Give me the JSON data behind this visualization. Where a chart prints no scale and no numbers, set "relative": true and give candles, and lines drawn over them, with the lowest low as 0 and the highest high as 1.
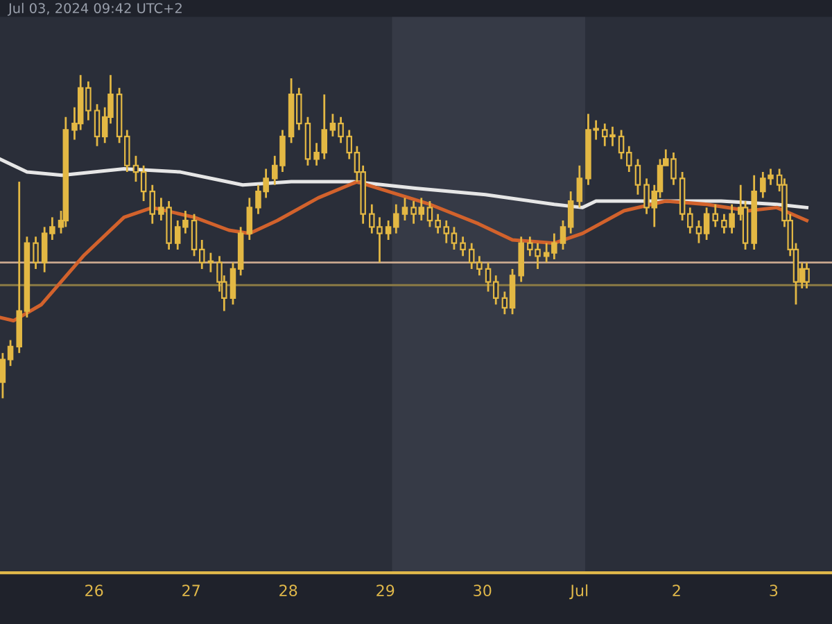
{
  "chart_data": {
    "type": "candlestick",
    "relative": true,
    "annotations": [
      "Jul 03, 2024 09:42 UTC+2"
    ],
    "color": "#e3b844",
    "x": [
      "2024-06-25T01:25",
      "2024-06-25T03:20",
      "2024-06-25T05:30",
      "2024-06-25T07:25",
      "2024-06-25T09:35",
      "2024-06-25T11:45",
      "2024-06-25T13:40",
      "2024-06-25T15:50",
      "2024-06-25T17:00",
      "2024-06-25T19:10",
      "2024-06-25T20:40",
      "2024-06-25T22:35",
      "2024-06-26T00:45",
      "2024-06-26T02:40",
      "2024-06-26T04:05",
      "2024-06-26T06:15",
      "2024-06-26T08:10",
      "2024-06-26T10:20",
      "2024-06-26T12:15",
      "2024-06-26T14:25",
      "2024-06-26T16:35",
      "2024-06-26T18:30",
      "2024-06-26T20:40",
      "2024-06-26T22:35",
      "2024-06-27T00:45",
      "2024-06-27T02:40",
      "2024-06-27T04:50",
      "2024-06-27T07:00",
      "2024-06-27T08:10",
      "2024-06-27T10:20",
      "2024-06-27T12:15",
      "2024-06-27T14:25",
      "2024-06-27T16:35",
      "2024-06-27T18:30",
      "2024-06-27T20:40",
      "2024-06-27T22:35",
      "2024-06-28T00:45",
      "2024-06-28T02:40",
      "2024-06-28T04:50",
      "2024-06-28T07:00",
      "2024-06-28T08:55",
      "2024-06-28T11:00",
      "2024-06-28T13:00",
      "2024-06-28T15:05",
      "2024-06-28T17:00",
      "2024-06-28T18:30",
      "2024-06-28T20:40",
      "2024-06-28T22:35",
      "2024-06-29T00:45",
      "2024-06-29T02:40",
      "2024-06-29T04:50",
      "2024-06-29T07:00",
      "2024-06-29T08:55",
      "2024-06-29T11:00",
      "2024-06-29T13:00",
      "2024-06-29T15:05",
      "2024-06-29T17:00",
      "2024-06-29T19:10",
      "2024-06-29T21:20",
      "2024-06-29T23:15",
      "2024-06-30T01:25",
      "2024-06-30T03:20",
      "2024-06-30T05:30",
      "2024-06-30T07:25",
      "2024-06-30T09:35",
      "2024-06-30T11:45",
      "2024-06-30T13:40",
      "2024-06-30T15:50",
      "2024-06-30T17:45",
      "2024-06-30T19:55",
      "2024-06-30T21:50",
      "2024-07-01T00:00",
      "2024-07-01T02:10",
      "2024-07-01T04:05",
      "2024-07-01T06:15",
      "2024-07-01T08:10",
      "2024-07-01T10:20",
      "2024-07-01T12:15",
      "2024-07-01T14:25",
      "2024-07-01T16:35",
      "2024-07-01T18:30",
      "2024-07-01T19:55",
      "2024-07-01T21:20",
      "2024-07-01T23:15",
      "2024-07-02T01:25",
      "2024-07-02T03:20",
      "2024-07-02T05:30",
      "2024-07-02T07:25",
      "2024-07-02T09:35",
      "2024-07-02T11:45",
      "2024-07-02T13:40",
      "2024-07-02T15:50",
      "2024-07-02T17:00",
      "2024-07-02T19:10",
      "2024-07-02T21:20",
      "2024-07-02T23:15",
      "2024-07-03T01:25",
      "2024-07-03T02:40",
      "2024-07-03T04:05",
      "2024-07-03T05:30",
      "2024-07-03T07:00",
      "2024-07-03T08:10"
    ],
    "ohlc": [
      [
        0.05,
        0.14,
        0.0,
        0.12
      ],
      [
        0.12,
        0.18,
        0.1,
        0.16
      ],
      [
        0.16,
        0.67,
        0.14,
        0.27
      ],
      [
        0.27,
        0.5,
        0.25,
        0.48
      ],
      [
        0.48,
        0.5,
        0.4,
        0.42
      ],
      [
        0.42,
        0.53,
        0.39,
        0.51
      ],
      [
        0.51,
        0.56,
        0.49,
        0.53
      ],
      [
        0.53,
        0.58,
        0.51,
        0.55
      ],
      [
        0.55,
        0.87,
        0.53,
        0.83
      ],
      [
        0.83,
        0.9,
        0.8,
        0.85
      ],
      [
        0.85,
        1.0,
        0.83,
        0.96
      ],
      [
        0.96,
        0.98,
        0.86,
        0.89
      ],
      [
        0.89,
        0.91,
        0.78,
        0.81
      ],
      [
        0.81,
        0.9,
        0.79,
        0.87
      ],
      [
        0.87,
        1.0,
        0.85,
        0.94
      ],
      [
        0.94,
        0.96,
        0.79,
        0.81
      ],
      [
        0.81,
        0.83,
        0.7,
        0.72
      ],
      [
        0.72,
        0.75,
        0.67,
        0.7
      ],
      [
        0.7,
        0.72,
        0.61,
        0.64
      ],
      [
        0.64,
        0.66,
        0.54,
        0.57
      ],
      [
        0.57,
        0.62,
        0.55,
        0.59
      ],
      [
        0.59,
        0.61,
        0.46,
        0.48
      ],
      [
        0.48,
        0.55,
        0.46,
        0.53
      ],
      [
        0.53,
        0.58,
        0.51,
        0.55
      ],
      [
        0.55,
        0.57,
        0.44,
        0.46
      ],
      [
        0.46,
        0.49,
        0.4,
        0.42
      ],
      [
        0.42,
        0.45,
        0.39,
        0.42
      ],
      [
        0.42,
        0.44,
        0.33,
        0.36
      ],
      [
        0.36,
        0.38,
        0.27,
        0.31
      ],
      [
        0.31,
        0.42,
        0.29,
        0.4
      ],
      [
        0.4,
        0.53,
        0.38,
        0.51
      ],
      [
        0.51,
        0.62,
        0.49,
        0.59
      ],
      [
        0.59,
        0.66,
        0.57,
        0.64
      ],
      [
        0.64,
        0.71,
        0.62,
        0.68
      ],
      [
        0.68,
        0.75,
        0.66,
        0.72
      ],
      [
        0.72,
        0.83,
        0.7,
        0.81
      ],
      [
        0.81,
        0.99,
        0.79,
        0.94
      ],
      [
        0.94,
        0.96,
        0.83,
        0.85
      ],
      [
        0.85,
        0.87,
        0.72,
        0.74
      ],
      [
        0.74,
        0.79,
        0.72,
        0.76
      ],
      [
        0.76,
        0.94,
        0.74,
        0.83
      ],
      [
        0.83,
        0.88,
        0.81,
        0.85
      ],
      [
        0.85,
        0.87,
        0.79,
        0.81
      ],
      [
        0.81,
        0.83,
        0.74,
        0.76
      ],
      [
        0.76,
        0.78,
        0.67,
        0.7
      ],
      [
        0.7,
        0.72,
        0.54,
        0.57
      ],
      [
        0.57,
        0.6,
        0.51,
        0.53
      ],
      [
        0.53,
        0.56,
        0.42,
        0.51
      ],
      [
        0.51,
        0.55,
        0.49,
        0.53
      ],
      [
        0.53,
        0.6,
        0.51,
        0.57
      ],
      [
        0.57,
        0.62,
        0.55,
        0.59
      ],
      [
        0.59,
        0.61,
        0.54,
        0.57
      ],
      [
        0.57,
        0.62,
        0.55,
        0.59
      ],
      [
        0.59,
        0.61,
        0.53,
        0.55
      ],
      [
        0.55,
        0.57,
        0.51,
        0.53
      ],
      [
        0.53,
        0.55,
        0.48,
        0.51
      ],
      [
        0.51,
        0.53,
        0.46,
        0.48
      ],
      [
        0.48,
        0.5,
        0.44,
        0.46
      ],
      [
        0.46,
        0.48,
        0.4,
        0.42
      ],
      [
        0.42,
        0.44,
        0.38,
        0.4
      ],
      [
        0.4,
        0.42,
        0.33,
        0.36
      ],
      [
        0.36,
        0.38,
        0.29,
        0.31
      ],
      [
        0.31,
        0.33,
        0.26,
        0.28
      ],
      [
        0.28,
        0.4,
        0.26,
        0.38
      ],
      [
        0.38,
        0.5,
        0.36,
        0.48
      ],
      [
        0.48,
        0.5,
        0.44,
        0.46
      ],
      [
        0.46,
        0.48,
        0.4,
        0.44
      ],
      [
        0.44,
        0.48,
        0.42,
        0.45
      ],
      [
        0.45,
        0.51,
        0.43,
        0.48
      ],
      [
        0.48,
        0.55,
        0.46,
        0.53
      ],
      [
        0.53,
        0.64,
        0.51,
        0.61
      ],
      [
        0.61,
        0.72,
        0.59,
        0.68
      ],
      [
        0.68,
        0.88,
        0.66,
        0.83
      ],
      [
        0.83,
        0.86,
        0.8,
        0.83
      ],
      [
        0.83,
        0.85,
        0.78,
        0.81
      ],
      [
        0.81,
        0.84,
        0.78,
        0.81
      ],
      [
        0.81,
        0.83,
        0.74,
        0.76
      ],
      [
        0.76,
        0.78,
        0.7,
        0.72
      ],
      [
        0.72,
        0.74,
        0.63,
        0.66
      ],
      [
        0.66,
        0.68,
        0.57,
        0.59
      ],
      [
        0.59,
        0.66,
        0.53,
        0.64
      ],
      [
        0.64,
        0.74,
        0.62,
        0.72
      ],
      [
        0.72,
        0.77,
        0.72,
        0.74
      ],
      [
        0.74,
        0.76,
        0.66,
        0.68
      ],
      [
        0.68,
        0.7,
        0.55,
        0.57
      ],
      [
        0.57,
        0.59,
        0.51,
        0.53
      ],
      [
        0.53,
        0.55,
        0.48,
        0.51
      ],
      [
        0.51,
        0.59,
        0.49,
        0.57
      ],
      [
        0.57,
        0.6,
        0.53,
        0.55
      ],
      [
        0.55,
        0.57,
        0.51,
        0.53
      ],
      [
        0.53,
        0.6,
        0.51,
        0.57
      ],
      [
        0.57,
        0.66,
        0.55,
        0.59
      ],
      [
        0.59,
        0.61,
        0.46,
        0.48
      ],
      [
        0.48,
        0.69,
        0.46,
        0.64
      ],
      [
        0.64,
        0.7,
        0.62,
        0.68
      ],
      [
        0.68,
        0.71,
        0.66,
        0.69
      ],
      [
        0.69,
        0.71,
        0.64,
        0.66
      ],
      [
        0.66,
        0.68,
        0.53,
        0.55
      ],
      [
        0.55,
        0.57,
        0.44,
        0.46
      ],
      [
        0.46,
        0.48,
        0.29,
        0.36
      ],
      [
        0.36,
        0.42,
        0.34,
        0.4
      ],
      [
        0.4,
        0.42,
        0.34,
        0.36
      ]
    ],
    "series": [
      {
        "type": "line",
        "color": "#e6e6e6",
        "x": [
          "2024-06-25T00:45",
          "2024-06-25T07:25",
          "2024-06-25T16:05",
          "2024-06-26T07:25",
          "2024-06-26T21:20",
          "2024-06-27T12:45",
          "2024-06-28T00:45",
          "2024-06-28T16:05",
          "2024-06-29T07:25",
          "2024-06-30T00:45",
          "2024-06-30T17:45",
          "2024-07-01T00:45",
          "2024-07-01T04:05",
          "2024-07-01T17:45",
          "2024-07-02T11:00",
          "2024-07-03T00:45",
          "2024-07-03T08:10"
        ],
        "values": [
          0.74,
          0.7,
          0.69,
          0.71,
          0.7,
          0.66,
          0.67,
          0.67,
          0.65,
          0.63,
          0.6,
          0.59,
          0.61,
          0.61,
          0.61,
          0.6,
          0.59
        ]
      },
      {
        "type": "line",
        "color": "#d2622c",
        "x": [
          "2024-06-25T00:45",
          "2024-06-25T04:05",
          "2024-06-25T11:00",
          "2024-06-25T21:20",
          "2024-06-26T07:25",
          "2024-06-26T14:25",
          "2024-06-27T00:45",
          "2024-06-27T09:20",
          "2024-06-27T14:25",
          "2024-06-27T21:20",
          "2024-06-28T07:25",
          "2024-06-28T17:00",
          "2024-06-29T00:45",
          "2024-06-29T11:00",
          "2024-06-29T23:00",
          "2024-06-30T07:25",
          "2024-06-30T17:45",
          "2024-07-01T00:45",
          "2024-07-01T11:00",
          "2024-07-01T21:20",
          "2024-07-02T07:25",
          "2024-07-02T17:45",
          "2024-07-03T00:45",
          "2024-07-03T08:10"
        ],
        "values": [
          0.25,
          0.24,
          0.29,
          0.44,
          0.56,
          0.59,
          0.56,
          0.52,
          0.51,
          0.55,
          0.62,
          0.67,
          0.64,
          0.6,
          0.54,
          0.49,
          0.48,
          0.51,
          0.58,
          0.61,
          0.6,
          0.58,
          0.59,
          0.55
        ]
      }
    ],
    "ref_lines": [
      {
        "axis": "y",
        "value": 0.42,
        "color": "#c9a88f"
      },
      {
        "axis": "y",
        "value": 0.35,
        "color": "#8c7b45"
      }
    ],
    "bands": [
      {
        "axis": "x",
        "from": "2024-06-29T01:40",
        "to": "2024-07-01T01:25",
        "color": "#363a46"
      }
    ],
    "xlim": [
      "2024-06-25T00:45",
      "2024-07-03T14:25"
    ],
    "xticks": [
      {
        "value": "2024-06-26",
        "label": "26"
      },
      {
        "value": "2024-06-27",
        "label": "27"
      },
      {
        "value": "2024-06-28",
        "label": "28"
      },
      {
        "value": "2024-06-29",
        "label": "29"
      },
      {
        "value": "2024-06-30",
        "label": "30"
      },
      {
        "value": "2024-07-01",
        "label": "Jul"
      },
      {
        "value": "2024-07-02",
        "label": "2"
      },
      {
        "value": "2024-07-03",
        "label": "3"
      }
    ]
  }
}
